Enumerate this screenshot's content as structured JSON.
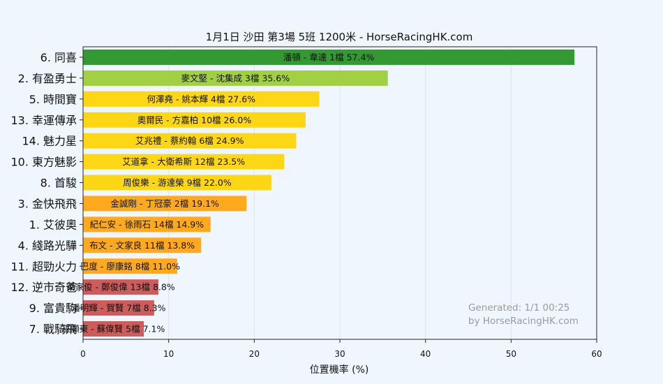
{
  "chart_data": {
    "type": "bar",
    "orientation": "horizontal",
    "title": "1月1日  沙田  第3場  5班  1200米 - HorseRacingHK.com",
    "xlabel": "位置機率 (%)",
    "ylabel": "",
    "xlim": [
      0,
      60
    ],
    "xticks": [
      0,
      10,
      20,
      30,
      40,
      50,
      60
    ],
    "grid": "vertical",
    "categories": [
      "6. 同喜",
      "2. 有盈勇士",
      "5. 時間寶",
      "13. 幸運傳承",
      "14. 魅力星",
      "10. 東方魅影",
      "8. 首駿",
      "3. 金快飛飛",
      "1. 艾彼奧",
      "4. 綫路光驊",
      "11. 超勁火力",
      "12. 逆市奇爸",
      "9. 富貴駒",
      "7. 戰騎飛"
    ],
    "values": [
      57.4,
      35.6,
      27.6,
      26.0,
      24.9,
      23.5,
      22.0,
      19.1,
      14.9,
      13.8,
      11.0,
      8.8,
      8.3,
      7.1
    ],
    "bar_labels": [
      "潘頓 - 韋達 1檔  57.4%",
      "麥文堅 - 沈集成 3檔  35.6%",
      "何澤堯 - 姚本輝 4檔  27.6%",
      "奧爾民 - 方嘉柏 10檔  26.0%",
      "艾兆禮 - 蔡約翰 6檔  24.9%",
      "艾道拿 - 大衛希斯 12檔  23.5%",
      "周俊樂 - 游達榮 9檔  22.0%",
      "金誠剛 - 丁冠豪 2檔  19.1%",
      "紀仁安 - 徐雨石 14檔  14.9%",
      "布文 - 文家良 11檔  13.8%",
      "巴度 - 廖康銘 8檔  11.0%",
      "梁家俊 - 鄭俊偉 13檔  8.8%",
      "潘明輝 - 賀賢 7檔  8.3%",
      "巫顯東 - 蘇偉賢 5檔  7.1%"
    ],
    "colors": [
      "#339933",
      "#a2d045",
      "#fdd716",
      "#fdd716",
      "#fdd716",
      "#fdd716",
      "#fdd716",
      "#ffaa1e",
      "#ffaa1e",
      "#ffaa1e",
      "#ffaa1e",
      "#cd5c5c",
      "#cd5c5c",
      "#cd5c5c"
    ],
    "watermark": [
      "Generated: 1/1 00:25",
      "by HorseRacingHK.com"
    ]
  }
}
